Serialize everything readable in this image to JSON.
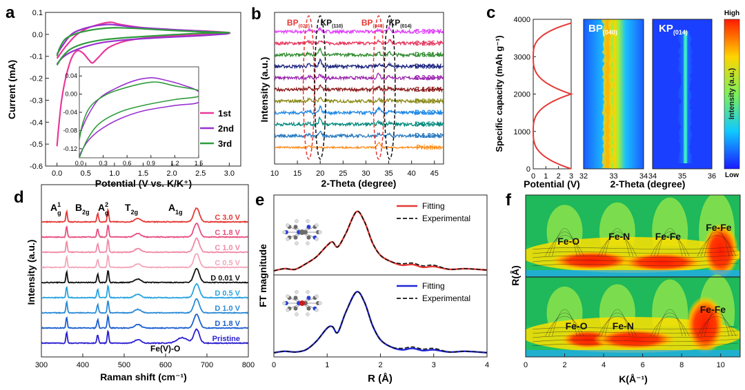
{
  "panels": {
    "a": {
      "letter": "a",
      "chart_data": {
        "type": "line",
        "title": "",
        "xlabel": "Potential (V vs. K/K⁺)",
        "ylabel": "Current (mA)",
        "xlim": [
          -0.2,
          3.2
        ],
        "ylim": [
          -0.6,
          0.1
        ],
        "xticks": [
          "0.0",
          "0.5",
          "1.0",
          "1.5",
          "2.0",
          "2.5",
          "3.0"
        ],
        "yticks": [
          "0.1",
          "0.0",
          "-0.1",
          "-0.2",
          "-0.3",
          "-0.4",
          "-0.5",
          "-0.6"
        ],
        "legend": [
          {
            "name": "1st",
            "color": "#e8389a"
          },
          {
            "name": "2nd",
            "color": "#9a2fd0"
          },
          {
            "name": "3rd",
            "color": "#2e9b3c"
          }
        ],
        "series": [
          {
            "name": "1st",
            "color": "#e8389a",
            "points": [
              [
                0.0,
                -0.51
              ],
              [
                0.03,
                -0.42
              ],
              [
                0.08,
                -0.3
              ],
              [
                0.15,
                -0.2
              ],
              [
                0.25,
                -0.11
              ],
              [
                0.35,
                -0.075
              ],
              [
                0.45,
                -0.085
              ],
              [
                0.55,
                -0.115
              ],
              [
                0.62,
                -0.13
              ],
              [
                0.72,
                -0.105
              ],
              [
                0.9,
                -0.06
              ],
              [
                1.2,
                -0.03
              ],
              [
                1.6,
                -0.015
              ],
              [
                2.2,
                -0.005
              ],
              [
                3.0,
                0.005
              ],
              [
                2.6,
                0.015
              ],
              [
                2.0,
                0.02
              ],
              [
                1.5,
                0.03
              ],
              [
                1.1,
                0.045
              ],
              [
                0.95,
                0.055
              ],
              [
                0.8,
                0.05
              ],
              [
                0.55,
                0.03
              ],
              [
                0.35,
                0.0
              ],
              [
                0.2,
                -0.04
              ],
              [
                0.08,
                -0.08
              ],
              [
                0.0,
                -0.11
              ]
            ]
          },
          {
            "name": "2nd",
            "color": "#9a2fd0",
            "points": [
              [
                0.0,
                -0.135
              ],
              [
                0.1,
                -0.105
              ],
              [
                0.25,
                -0.08
              ],
              [
                0.5,
                -0.055
              ],
              [
                0.8,
                -0.037
              ],
              [
                1.2,
                -0.025
              ],
              [
                1.8,
                -0.015
              ],
              [
                2.5,
                -0.006
              ],
              [
                3.0,
                0.005
              ],
              [
                2.5,
                0.015
              ],
              [
                2.0,
                0.022
              ],
              [
                1.4,
                0.032
              ],
              [
                1.05,
                0.042
              ],
              [
                0.9,
                0.045
              ],
              [
                0.7,
                0.04
              ],
              [
                0.45,
                0.025
              ],
              [
                0.25,
                0.0
              ],
              [
                0.1,
                -0.05
              ],
              [
                0.0,
                -0.09
              ]
            ]
          },
          {
            "name": "3rd",
            "color": "#2e9b3c",
            "points": [
              [
                0.0,
                -0.14
              ],
              [
                0.1,
                -0.1
              ],
              [
                0.25,
                -0.065
              ],
              [
                0.5,
                -0.04
              ],
              [
                0.8,
                -0.025
              ],
              [
                1.2,
                -0.015
              ],
              [
                1.8,
                -0.005
              ],
              [
                2.5,
                0.005
              ],
              [
                3.0,
                0.008
              ],
              [
                2.5,
                0.012
              ],
              [
                2.0,
                0.018
              ],
              [
                1.4,
                0.027
              ],
              [
                1.05,
                0.03
              ],
              [
                0.85,
                0.028
              ],
              [
                0.6,
                0.02
              ],
              [
                0.35,
                0.005
              ],
              [
                0.15,
                -0.02
              ],
              [
                0.05,
                -0.06
              ],
              [
                0.0,
                -0.1
              ]
            ]
          }
        ],
        "inset": {
          "xlim": [
            0,
            1.5
          ],
          "ylim": [
            -0.14,
            0.06
          ],
          "xticks": [
            "0.0",
            "0.3",
            "0.6",
            "0.9",
            "1.2",
            "1.5"
          ],
          "yticks": [
            "0.04",
            "0.00",
            "-0.04",
            "-0.08",
            "-0.12"
          ],
          "series": [
            {
              "name": "2nd",
              "color": "#9a2fd0",
              "points": [
                [
                  0.0,
                  -0.135
                ],
                [
                  0.1,
                  -0.105
                ],
                [
                  0.25,
                  -0.08
                ],
                [
                  0.5,
                  -0.055
                ],
                [
                  0.8,
                  -0.037
                ],
                [
                  1.2,
                  -0.025
                ],
                [
                  1.5,
                  -0.018
                ],
                [
                  1.5,
                  0.005
                ],
                [
                  1.3,
                  0.02
                ],
                [
                  1.05,
                  0.032
                ],
                [
                  0.9,
                  0.036
                ],
                [
                  0.7,
                  0.03
                ],
                [
                  0.45,
                  0.012
                ],
                [
                  0.25,
                  -0.01
                ],
                [
                  0.1,
                  -0.05
                ],
                [
                  0.0,
                  -0.09
                ]
              ]
            },
            {
              "name": "3rd",
              "color": "#2e9b3c",
              "points": [
                [
                  0.0,
                  -0.14
                ],
                [
                  0.1,
                  -0.1
                ],
                [
                  0.25,
                  -0.065
                ],
                [
                  0.5,
                  -0.04
                ],
                [
                  0.8,
                  -0.025
                ],
                [
                  1.2,
                  -0.012
                ],
                [
                  1.5,
                  -0.005
                ],
                [
                  1.5,
                  0.008
                ],
                [
                  1.2,
                  0.018
                ],
                [
                  1.0,
                  0.026
                ],
                [
                  0.85,
                  0.025
                ],
                [
                  0.6,
                  0.015
                ],
                [
                  0.35,
                  0.0
                ],
                [
                  0.15,
                  -0.025
                ],
                [
                  0.05,
                  -0.06
                ],
                [
                  0.0,
                  -0.1
                ]
              ]
            }
          ]
        }
      }
    },
    "b": {
      "letter": "b",
      "chart_data": {
        "type": "line",
        "xlabel": "2-Theta (degree)",
        "ylabel": "Intensity (a.u.)",
        "xlim": [
          10,
          47
        ],
        "xticks": [
          "10",
          "15",
          "20",
          "25",
          "30",
          "35",
          "40",
          "45"
        ],
        "peak_labels": [
          {
            "text": "BP",
            "sub": "(020)",
            "x": 15.2,
            "color": "#e53935"
          },
          {
            "text": "KP",
            "sub": "(110)",
            "x": 22.5,
            "color": "#111111"
          },
          {
            "text": "BP",
            "sub": "(040)",
            "x": 31.5,
            "color": "#e53935"
          },
          {
            "text": "KP",
            "sub": "(014)",
            "x": 37.5,
            "color": "#111111"
          }
        ],
        "peaks_deg": [
          17.5,
          20.0,
          32.8,
          35.2
        ],
        "traces": [
          {
            "label": "C 3.00 V",
            "color": "#e040fb"
          },
          {
            "label": "C 1.35 V",
            "color": "#e53960"
          },
          {
            "label": "D 0.01 V",
            "color": "#2e8b2e"
          },
          {
            "label": "D 0.60 V",
            "color": "#1a237e"
          },
          {
            "label": "C 3.00 V",
            "color": "#9c27b0"
          },
          {
            "label": "C 1.55 V",
            "color": "#8b1a1a"
          },
          {
            "label": "D 0.01 V",
            "color": "#8b8b1a"
          },
          {
            "label": "D 0.20 V",
            "color": "#1e88e5"
          },
          {
            "label": "D 0.50 V",
            "color": "#00897b"
          },
          {
            "label": "D 1.00 V",
            "color": "#2b7bc0"
          },
          {
            "label": "Pristine",
            "color": "#ff8c1a"
          }
        ]
      }
    },
    "c": {
      "letter": "c",
      "chart_data": {
        "type": "line",
        "xlabel": "Potential (V)",
        "ylabel": "Specific capacity (mAh g⁻¹)",
        "xlim": [
          0,
          3
        ],
        "ylim": [
          0,
          4000
        ],
        "xticks": [
          "0",
          "1",
          "2",
          "3"
        ],
        "yticks": [
          "0",
          "1000",
          "2000",
          "3000",
          "4000"
        ],
        "color": "#e53935",
        "heatmaps": [
          {
            "title": "BP",
            "sub": "(040)",
            "xlim": [
              32,
              34
            ],
            "xticks": [
              "32",
              "33",
              "34"
            ],
            "center_deg": 32.8
          },
          {
            "title": "KP",
            "sub": "(014)",
            "xlim": [
              34,
              36
            ],
            "xticks": [
              "34",
              "35",
              "36"
            ],
            "center_deg": 35.1
          }
        ],
        "heatmap_xlabel": "2-Theta (degree)",
        "colorbar": {
          "label": "Intensity  (a.u.)",
          "high": "High",
          "low": "Low"
        }
      }
    },
    "d": {
      "letter": "d",
      "chart_data": {
        "type": "line",
        "xlabel": "Raman shift (cm⁻¹)",
        "ylabel": "Intensity (a.u.)",
        "xlim": [
          300,
          800
        ],
        "xticks": [
          "300",
          "400",
          "500",
          "600",
          "700",
          "800"
        ],
        "modes": [
          {
            "text": "A",
            "sup": "1",
            "sub": "g",
            "x": 355
          },
          {
            "text": "B",
            "sup": "",
            "sub": "2g",
            "x": 415
          },
          {
            "text": "A",
            "sup": "2",
            "sub": "g",
            "x": 470
          },
          {
            "text": "T",
            "sup": "",
            "sub": "2g",
            "x": 535
          },
          {
            "text": "A",
            "sup": "",
            "sub": "1g",
            "x": 640
          }
        ],
        "peaks_cm": [
          361,
          436,
          461,
          533,
          675
        ],
        "annotation": "Fe(V)-O",
        "traces": [
          {
            "label": "C 3.0 V",
            "color": "#e53935"
          },
          {
            "label": "C 1.8 V",
            "color": "#e84e7f"
          },
          {
            "label": "C 1.0 V",
            "color": "#f08aa6"
          },
          {
            "label": "C 0.5 V",
            "color": "#f3a6b9"
          },
          {
            "label": "D 0.01 V",
            "color": "#111111"
          },
          {
            "label": "D 0.5 V",
            "color": "#29a3e0"
          },
          {
            "label": "D 1.0 V",
            "color": "#2b8ad6"
          },
          {
            "label": "D 1.8 V",
            "color": "#1a5fcf"
          },
          {
            "label": "Pristine",
            "color": "#2a1ecf"
          }
        ]
      }
    },
    "e": {
      "letter": "e",
      "chart_data": {
        "type": "line",
        "xlabel": "R (Å)",
        "ylabel": "FT magnitude",
        "xlim": [
          0,
          4
        ],
        "xticks": [
          "0",
          "1",
          "2",
          "3",
          "4"
        ],
        "subplots": [
          {
            "fit_label": "Fitting",
            "exp_label": "Experimental",
            "fit_color": "#e53935",
            "points": [
              [
                0,
                0.02
              ],
              [
                0.2,
                0.05
              ],
              [
                0.4,
                0.04
              ],
              [
                0.6,
                0.12
              ],
              [
                0.8,
                0.22
              ],
              [
                1.0,
                0.38
              ],
              [
                1.1,
                0.43
              ],
              [
                1.2,
                0.36
              ],
              [
                1.35,
                0.55
              ],
              [
                1.55,
                0.86
              ],
              [
                1.7,
                0.72
              ],
              [
                1.85,
                0.42
              ],
              [
                2.0,
                0.24
              ],
              [
                2.2,
                0.15
              ],
              [
                2.4,
                0.1
              ],
              [
                2.6,
                0.11
              ],
              [
                2.8,
                0.07
              ],
              [
                3.0,
                0.08
              ],
              [
                3.3,
                0.04
              ],
              [
                3.6,
                0.05
              ],
              [
                4.0,
                0.03
              ]
            ]
          },
          {
            "fit_label": "Fitting",
            "exp_label": "Experimental",
            "fit_color": "#1f24d6",
            "points": [
              [
                0,
                0.02
              ],
              [
                0.2,
                0.04
              ],
              [
                0.4,
                0.03
              ],
              [
                0.6,
                0.06
              ],
              [
                0.8,
                0.18
              ],
              [
                1.0,
                0.36
              ],
              [
                1.1,
                0.38
              ],
              [
                1.2,
                0.3
              ],
              [
                1.35,
                0.58
              ],
              [
                1.55,
                0.86
              ],
              [
                1.7,
                0.72
              ],
              [
                1.85,
                0.4
              ],
              [
                2.0,
                0.2
              ],
              [
                2.2,
                0.1
              ],
              [
                2.4,
                0.06
              ],
              [
                2.6,
                0.08
              ],
              [
                2.8,
                0.05
              ],
              [
                3.0,
                0.06
              ],
              [
                3.3,
                0.03
              ],
              [
                3.6,
                0.04
              ],
              [
                4.0,
                0.02
              ]
            ]
          }
        ]
      }
    },
    "f": {
      "letter": "f",
      "chart_data": {
        "type": "heatmap",
        "xlabel": "K(Å⁻¹)",
        "ylabel": "R(Å)",
        "xlim": [
          0,
          11
        ],
        "xticks": [
          "0",
          "2",
          "4",
          "6",
          "8",
          "10"
        ],
        "top_labels": [
          {
            "text": "Fe-O",
            "k": 2.2
          },
          {
            "text": "Fe-N",
            "k": 4.8
          },
          {
            "text": "Fe-Fe",
            "k": 7.3
          },
          {
            "text": "Fe-Fe",
            "k": 9.9
          }
        ],
        "bottom_labels": [
          {
            "text": "Fe-O",
            "k": 2.6
          },
          {
            "text": "Fe-N",
            "k": 5.0
          },
          {
            "text": "Fe-Fe",
            "k": 9.6
          }
        ]
      }
    }
  }
}
